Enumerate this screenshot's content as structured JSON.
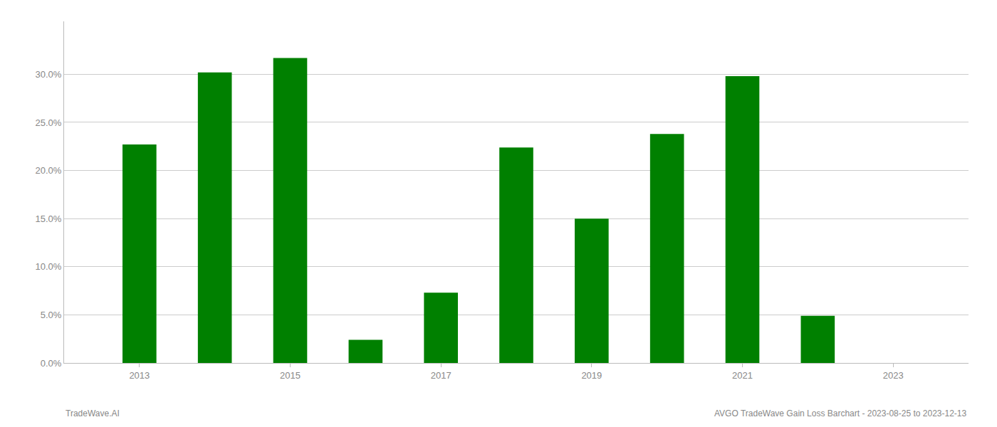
{
  "chart_data": {
    "type": "bar",
    "x": [
      2013,
      2014,
      2015,
      2016,
      2017,
      2018,
      2019,
      2020,
      2021,
      2022
    ],
    "values": [
      0.227,
      0.302,
      0.317,
      0.024,
      0.073,
      0.224,
      0.15,
      0.238,
      0.298,
      0.049
    ],
    "color": "#008000",
    "xlim": [
      2012.0,
      2024.0
    ],
    "xticks": [
      2013,
      2015,
      2017,
      2019,
      2021,
      2023
    ],
    "ylim": [
      0,
      0.355
    ],
    "yticks": [
      {
        "value": 0.0,
        "label": "0.0%"
      },
      {
        "value": 0.05,
        "label": "5.0%"
      },
      {
        "value": 0.1,
        "label": "10.0%"
      },
      {
        "value": 0.15,
        "label": "15.0%"
      },
      {
        "value": 0.2,
        "label": "20.0%"
      },
      {
        "value": 0.25,
        "label": "25.0%"
      },
      {
        "value": 0.3,
        "label": "30.0%"
      }
    ],
    "grid": true,
    "annotations": [
      "TradeWave.AI",
      "AVGO TradeWave Gain Loss Barchart - 2023-08-25 to 2023-12-13"
    ]
  }
}
